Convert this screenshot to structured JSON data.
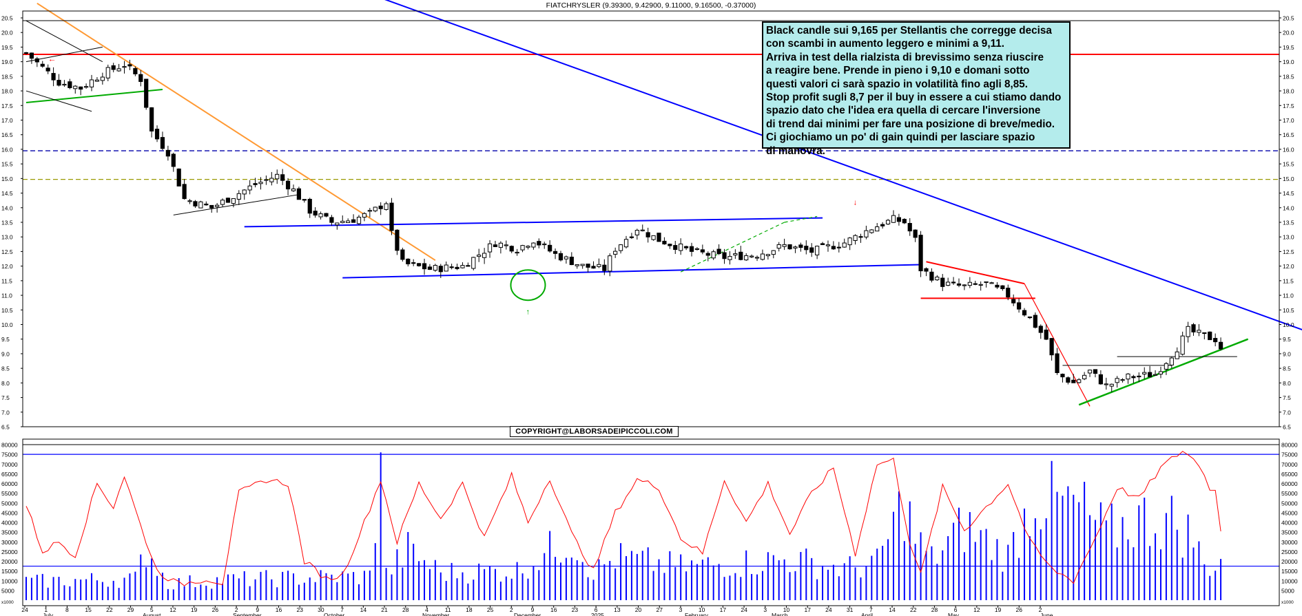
{
  "header": {
    "ticker_title": "FIATCHRYSLER (9.39300, 9.42900, 9.11000, 9.16500, -0.37000)"
  },
  "annotation": {
    "lines": [
      "Black candle sui 9,165 per Stellantis che corregge decisa",
      "con scambi in aumento leggero e minimi a 9,11.",
      "Arriva in test della rialzista di brevissimo senza riuscire",
      "a reagire bene. Prende in pieno i 9,10 e domani sotto",
      "questi valori ci sarà spazio in volatilità fino agli 8,85.",
      "Stop profit sugli 8,7 per il buy in essere a cui stiamo dando",
      "spazio dato che l'idea era quella di cercare l'inversione",
      "di trend dai minimi per fare una posizione di breve/medio.",
      "Ci giochiamo un po' di gain quindi per lasciare spazio",
      "di manovra."
    ]
  },
  "copyright": "COPYRIGHT@LABORSADEIPICCOLI.COM",
  "colors": {
    "candle": "#000000",
    "resistance_red": "#ff0000",
    "downtrend_blue": "#0000ff",
    "orange_trend": "#ff9933",
    "uptrend_green": "#00aa00",
    "dashed_blue": "#0000aa",
    "dashed_olive": "#999900",
    "volume_bar": "#0000ff",
    "oscillator": "#ff0000",
    "annotation_bg": "#b4ecec"
  },
  "chart_data": [
    {
      "type": "candlestick",
      "title": "FIATCHRYSLER (9.39300, 9.42900, 9.11000, 9.16500, -0.37000)",
      "ylim": [
        6.5,
        20.5
      ],
      "yticks": [
        "6.5",
        "7.0",
        "7.5",
        "8.0",
        "8.5",
        "9.0",
        "9.5",
        "10.0",
        "10.5",
        "11.0",
        "11.5",
        "12.0",
        "12.5",
        "13.0",
        "13.5",
        "14.0",
        "14.5",
        "15.0",
        "15.5",
        "16.0",
        "16.5",
        "17.0",
        "17.5",
        "18.0",
        "18.5",
        "19.0",
        "19.5",
        "20.0",
        "20.5"
      ],
      "x_day_labels": [
        "24",
        "1",
        "8",
        "15",
        "22",
        "29",
        "5",
        "12",
        "19",
        "26",
        "2",
        "9",
        "16",
        "23",
        "30",
        "7",
        "14",
        "21",
        "28",
        "4",
        "11",
        "18",
        "25",
        "2",
        "9",
        "16",
        "23",
        "6",
        "13",
        "20",
        "27",
        "3",
        "10",
        "17",
        "24",
        "3",
        "10",
        "17",
        "24",
        "31",
        "7",
        "14",
        "22",
        "28",
        "6",
        "12",
        "19",
        "26",
        "2"
      ],
      "x_month_labels": [
        "July",
        "August",
        "September",
        "October",
        "November",
        "December",
        "2025",
        "February",
        "March",
        "April",
        "May",
        "June"
      ],
      "last_candle": {
        "open": 9.393,
        "high": 9.429,
        "low": 9.11,
        "close": 9.165
      },
      "horizontal_levels": [
        {
          "value": 19.25,
          "style": "solid",
          "color": "#ff0000"
        },
        {
          "value": 15.95,
          "style": "dashed",
          "color": "#0000aa"
        },
        {
          "value": 14.97,
          "style": "dashed",
          "color": "#999900"
        }
      ],
      "price_path": [
        [
          0,
          19.3
        ],
        [
          3,
          18.8
        ],
        [
          6,
          18.3
        ],
        [
          10,
          18.1
        ],
        [
          14,
          18.6
        ],
        [
          18,
          18.9
        ],
        [
          21,
          18.4
        ],
        [
          23,
          16.6
        ],
        [
          26,
          15.9
        ],
        [
          29,
          14.3
        ],
        [
          34,
          14.0
        ],
        [
          38,
          14.4
        ],
        [
          42,
          14.8
        ],
        [
          46,
          15.1
        ],
        [
          49,
          14.6
        ],
        [
          52,
          13.9
        ],
        [
          56,
          13.5
        ],
        [
          60,
          13.6
        ],
        [
          63,
          13.8
        ],
        [
          66,
          14.2
        ],
        [
          67,
          13.1
        ],
        [
          69,
          12.1
        ],
        [
          74,
          11.9
        ],
        [
          80,
          12.0
        ],
        [
          86,
          12.8
        ],
        [
          90,
          12.6
        ],
        [
          93,
          12.9
        ],
        [
          97,
          12.4
        ],
        [
          102,
          12.0
        ],
        [
          106,
          11.9
        ],
        [
          108,
          12.6
        ],
        [
          112,
          13.3
        ],
        [
          116,
          12.9
        ],
        [
          122,
          12.5
        ],
        [
          128,
          12.3
        ],
        [
          134,
          12.4
        ],
        [
          139,
          12.7
        ],
        [
          144,
          12.5
        ],
        [
          150,
          12.8
        ],
        [
          155,
          13.3
        ],
        [
          159,
          13.6
        ],
        [
          161,
          13.5
        ],
        [
          163,
          12.9
        ],
        [
          164,
          11.9
        ],
        [
          168,
          11.4
        ],
        [
          172,
          11.3
        ],
        [
          176,
          11.4
        ],
        [
          180,
          11.0
        ],
        [
          184,
          10.2
        ],
        [
          187,
          9.5
        ],
        [
          189,
          8.3
        ],
        [
          192,
          8.0
        ],
        [
          195,
          8.4
        ],
        [
          198,
          7.9
        ],
        [
          202,
          8.2
        ],
        [
          207,
          8.3
        ],
        [
          211,
          9.2
        ],
        [
          213,
          9.8
        ],
        [
          216,
          9.6
        ],
        [
          218,
          9.5
        ],
        [
          219,
          9.165
        ]
      ]
    },
    {
      "type": "bar+line",
      "ylim": [
        0,
        80000
      ],
      "yticks": [
        "5000",
        "10000",
        "15000",
        "20000",
        "25000",
        "30000",
        "35000",
        "40000",
        "45000",
        "50000",
        "55000",
        "60000",
        "65000",
        "70000",
        "75000",
        "80000"
      ],
      "axis_unit_label": "x1000",
      "horizontal_levels": [
        75000,
        17500
      ],
      "volume_path": [
        [
          0,
          10000
        ],
        [
          12,
          11000
        ],
        [
          20,
          11500
        ],
        [
          22,
          28000
        ],
        [
          26,
          9000
        ],
        [
          36,
          11000
        ],
        [
          50,
          12000
        ],
        [
          63,
          13000
        ],
        [
          65,
          76000
        ],
        [
          66,
          14000
        ],
        [
          70,
          27000
        ],
        [
          76,
          15000
        ],
        [
          90,
          16000
        ],
        [
          100,
          34000
        ],
        [
          104,
          15000
        ],
        [
          108,
          23000
        ],
        [
          120,
          18000
        ],
        [
          140,
          22000
        ],
        [
          150,
          17000
        ],
        [
          156,
          20000
        ],
        [
          161,
          54000
        ],
        [
          163,
          33000
        ],
        [
          166,
          22000
        ],
        [
          172,
          40000
        ],
        [
          180,
          24000
        ],
        [
          185,
          58000
        ],
        [
          189,
          52000
        ],
        [
          193,
          50000
        ],
        [
          198,
          36000
        ],
        [
          204,
          44000
        ],
        [
          210,
          43000
        ],
        [
          214,
          34000
        ],
        [
          216,
          18000
        ],
        [
          219,
          21000
        ]
      ],
      "oscillator_path": [
        [
          0,
          49000
        ],
        [
          3,
          25000
        ],
        [
          6,
          30000
        ],
        [
          9,
          23000
        ],
        [
          13,
          60000
        ],
        [
          16,
          48000
        ],
        [
          18,
          64000
        ],
        [
          21,
          38000
        ],
        [
          24,
          15000
        ],
        [
          28,
          8000
        ],
        [
          33,
          11000
        ],
        [
          36,
          9000
        ],
        [
          39,
          55000
        ],
        [
          44,
          62000
        ],
        [
          48,
          60000
        ],
        [
          51,
          20000
        ],
        [
          55,
          11000
        ],
        [
          58,
          13000
        ],
        [
          62,
          40000
        ],
        [
          65,
          62000
        ],
        [
          68,
          30000
        ],
        [
          72,
          60000
        ],
        [
          76,
          42000
        ],
        [
          80,
          60000
        ],
        [
          84,
          32000
        ],
        [
          89,
          64000
        ],
        [
          92,
          40000
        ],
        [
          96,
          63000
        ],
        [
          100,
          34000
        ],
        [
          104,
          15000
        ],
        [
          108,
          45000
        ],
        [
          112,
          62000
        ],
        [
          116,
          58000
        ],
        [
          120,
          32000
        ],
        [
          124,
          24000
        ],
        [
          128,
          62000
        ],
        [
          132,
          40000
        ],
        [
          136,
          60000
        ],
        [
          140,
          34000
        ],
        [
          144,
          55000
        ],
        [
          148,
          68000
        ],
        [
          152,
          24000
        ],
        [
          156,
          70000
        ],
        [
          159,
          72000
        ],
        [
          162,
          30000
        ],
        [
          164,
          13000
        ],
        [
          168,
          58000
        ],
        [
          172,
          36000
        ],
        [
          176,
          48000
        ],
        [
          180,
          60000
        ],
        [
          184,
          30000
        ],
        [
          188,
          16000
        ],
        [
          192,
          10000
        ],
        [
          196,
          32000
        ],
        [
          200,
          58000
        ],
        [
          204,
          52000
        ],
        [
          208,
          68000
        ],
        [
          212,
          77000
        ],
        [
          215,
          70000
        ],
        [
          217,
          58000
        ],
        [
          218,
          56000
        ],
        [
          219,
          36000
        ]
      ]
    }
  ]
}
